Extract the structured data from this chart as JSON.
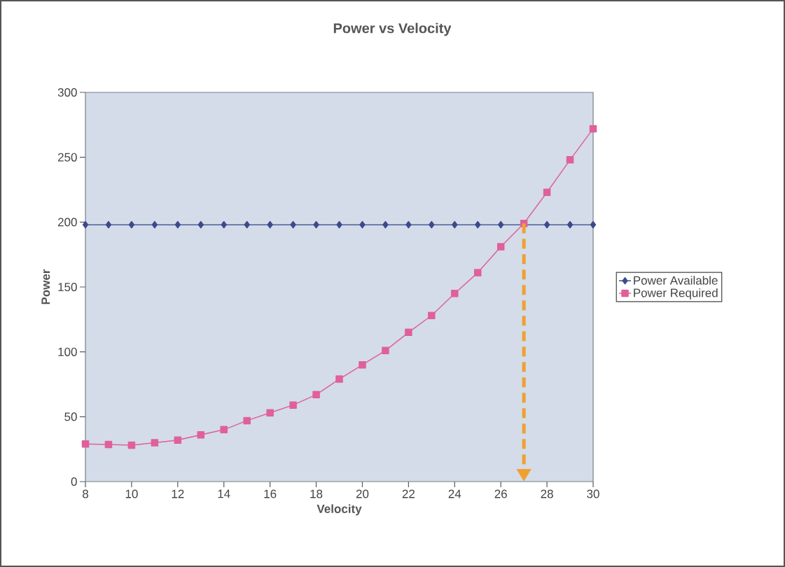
{
  "chart_data": {
    "type": "line",
    "title": "Power vs Velocity",
    "xlabel": "Velocity",
    "ylabel": "Power",
    "x": [
      8,
      9,
      10,
      11,
      12,
      13,
      14,
      15,
      16,
      17,
      18,
      19,
      20,
      21,
      22,
      23,
      24,
      25,
      26,
      27,
      28,
      29,
      30
    ],
    "series": [
      {
        "name": "Power Available",
        "color": "#3b4a8f",
        "marker": "diamond",
        "values": [
          198,
          198,
          198,
          198,
          198,
          198,
          198,
          198,
          198,
          198,
          198,
          198,
          198,
          198,
          198,
          198,
          198,
          198,
          198,
          null,
          198,
          198,
          198
        ]
      },
      {
        "name": "Power Required",
        "color": "#e0609a",
        "marker": "square",
        "values": [
          29,
          28.6,
          28,
          30,
          32,
          36,
          40,
          47,
          53,
          59,
          67,
          79,
          90,
          101,
          115,
          128,
          145,
          161,
          181,
          199,
          223,
          248,
          272
        ]
      }
    ],
    "xlim": [
      8,
      30
    ],
    "xticks": [
      8,
      10,
      12,
      14,
      16,
      18,
      20,
      22,
      24,
      26,
      28,
      30
    ],
    "ylim": [
      0,
      300
    ],
    "yticks": [
      0,
      50,
      100,
      150,
      200,
      250,
      300
    ],
    "ref_lines": [
      {
        "axis": "x",
        "value": 27,
        "color": "#f0a030",
        "line_style": "dashed"
      }
    ],
    "grid": false,
    "legend": "right",
    "line_style": "solid"
  }
}
